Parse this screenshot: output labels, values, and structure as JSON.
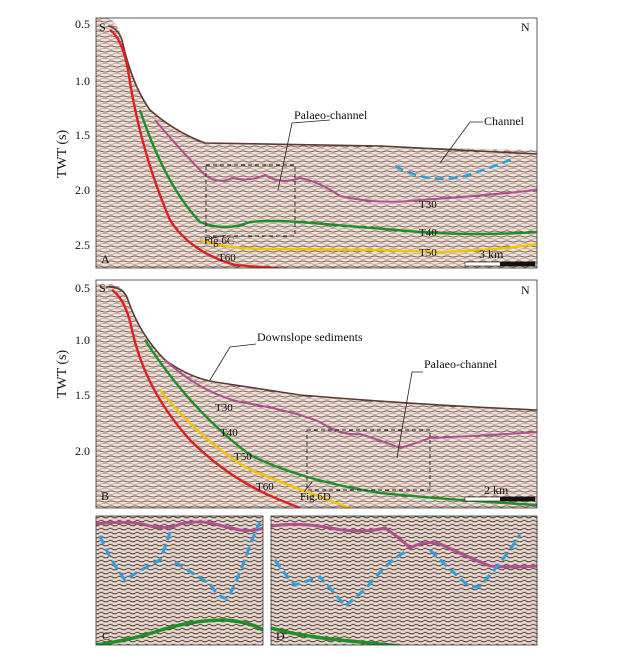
{
  "panels": {
    "A": {
      "letter": "A",
      "ylabel": "TWT (s)",
      "yticks": [
        "0.5",
        "1.0",
        "1.5",
        "2.0",
        "2.5"
      ],
      "dir_left": "S",
      "dir_right": "N",
      "annotations": {
        "palaeo_channel": "Palaeo-channel",
        "channel": "Channel",
        "fig_ref": "Fig.6C"
      },
      "horizons": {
        "t30": "T30",
        "t40": "T40",
        "t50": "T50",
        "t60": "T60"
      },
      "scale": "3 km"
    },
    "B": {
      "letter": "B",
      "ylabel": "TWT (s)",
      "yticks": [
        "0.5",
        "1.0",
        "1.5",
        "2.0"
      ],
      "dir_left": "S",
      "dir_right": "N",
      "annotations": {
        "downslope": "Downslope sediments",
        "palaeo_channel": "Palaeo-channel",
        "fig_ref": "Fig.6D"
      },
      "horizons": {
        "t30": "T30",
        "t40": "T40",
        "t50": "T50",
        "t60": "T60"
      },
      "scale": "2 km"
    },
    "C": {
      "letter": "C"
    },
    "D": {
      "letter": "D"
    }
  },
  "colors": {
    "t30": "#b0508f",
    "t40": "#1f8f2a",
    "t50": "#f2c400",
    "t60": "#e02020",
    "channel": "#2f9fe0",
    "box": "#222222"
  }
}
